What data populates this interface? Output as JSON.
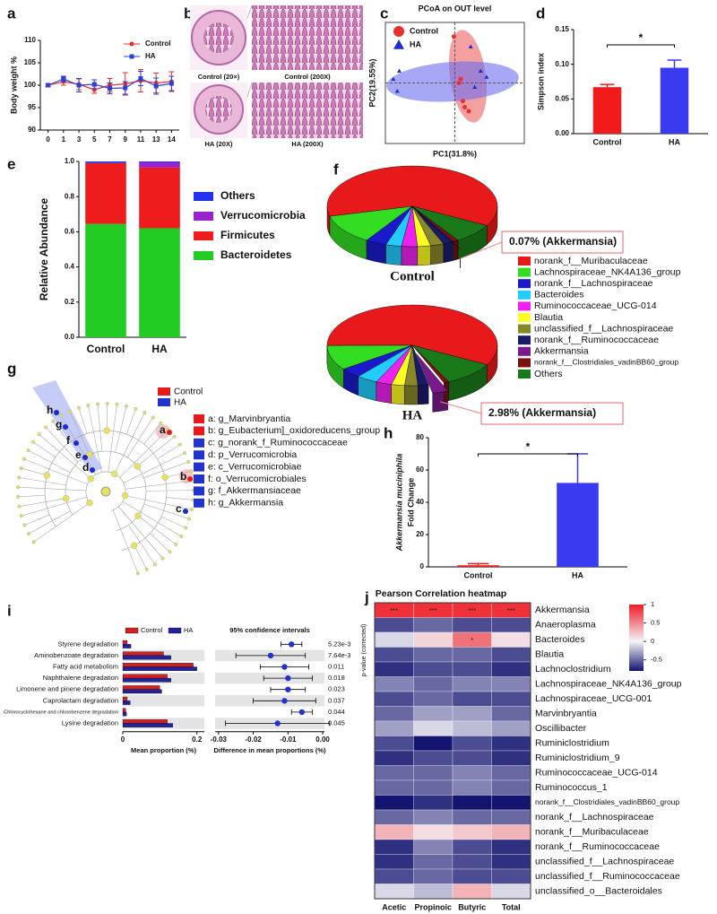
{
  "chart_data": [
    {
      "panel": "a",
      "type": "line",
      "ylabel": "Body weight %",
      "categories": [
        "0",
        "1",
        "3",
        "5",
        "7",
        "9",
        "11",
        "13",
        "14"
      ],
      "series": [
        {
          "name": "Control",
          "color": "#e8302a",
          "marker": "circle",
          "values": [
            100,
            100.8,
            100.2,
            99,
            100,
            100.3,
            101,
            100.5,
            100.8
          ],
          "errors": [
            0.3,
            0.8,
            1.2,
            0.8,
            1.5,
            2.5,
            2.5,
            2.2,
            2.2
          ]
        },
        {
          "name": "HA",
          "color": "#2f3fd6",
          "marker": "square",
          "values": [
            100,
            101.4,
            100,
            100.2,
            99.3,
            99.4,
            101.5,
            99.8,
            100.4
          ],
          "errors": [
            0.3,
            0.6,
            1.5,
            1,
            1.2,
            1.4,
            1.6,
            1.8,
            1.6
          ]
        }
      ],
      "ylim": [
        90,
        110
      ],
      "yticks": [
        90,
        95,
        100,
        105,
        110
      ],
      "legend": "upper-right"
    },
    {
      "panel": "c",
      "type": "scatter",
      "title": "PCoA on OUT level",
      "xlabel": "PC1(31.8%)",
      "ylabel": "PC2(19.55%)",
      "xlim": [
        -0.35,
        0.35
      ],
      "ylim": [
        -0.3,
        0.3
      ],
      "legend": "upper-left",
      "series": [
        {
          "name": "Control",
          "color": "#e8302a",
          "marker": "circle",
          "x": [
            -0.005,
            0.02,
            0.05,
            0.07,
            0.04,
            0.03
          ],
          "y": [
            0.23,
            0.0,
            -0.12,
            -0.14,
            -0.09,
            0.02
          ]
        },
        {
          "name": "HA",
          "color": "#1c2fc9",
          "marker": "triangle",
          "x": [
            -0.28,
            -0.31,
            0.08,
            0.13,
            0.16,
            0.1,
            -0.29
          ],
          "y": [
            0.06,
            0.02,
            0.18,
            0.06,
            0.03,
            -0.02,
            -0.04
          ]
        }
      ]
    },
    {
      "panel": "d",
      "type": "bar",
      "ylabel": "Simpson index",
      "categories": [
        "Control",
        "HA"
      ],
      "values": [
        0.067,
        0.095
      ],
      "errors": [
        0.004,
        0.011
      ],
      "colors": [
        "#f21b1b",
        "#3a3af0"
      ],
      "ylim": [
        0,
        0.15
      ],
      "yticks": [
        {
          "value": 0,
          "label": "0.00"
        },
        0.05,
        {
          "value": 0.1,
          "label": "0.10"
        },
        0.15
      ],
      "annotation": "*"
    },
    {
      "panel": "e",
      "type": "stacked_bar",
      "ylabel": "Relative Abundance",
      "categories": [
        "Control",
        "HA"
      ],
      "series": [
        {
          "name": "Bacteroidetes",
          "color": "#22cc22",
          "values": [
            0.645,
            0.62
          ]
        },
        {
          "name": "Firmicutes",
          "color": "#ee1c1c",
          "values": [
            0.345,
            0.345
          ]
        },
        {
          "name": "Verrucomicrobia",
          "color": "#9922cc",
          "values": [
            0.001,
            0.03
          ]
        },
        {
          "name": "Others",
          "color": "#2233ee",
          "values": [
            0.009,
            0.005
          ]
        }
      ],
      "ylim": [
        0,
        1
      ],
      "yticks": [
        {
          "value": 0,
          "label": "0.0"
        },
        0.2,
        0.4,
        0.6,
        0.8,
        {
          "value": 1,
          "label": "1.0"
        }
      ]
    },
    {
      "panel": "f",
      "type": "pie",
      "explode": "Akkermansia",
      "categories": [
        "norank_f__Muribaculaceae",
        "Lachnospiraceae_NK4A136_group",
        "norank_f__Lachnospiraceae",
        "Bacteroides",
        "Ruminococcaceae_UCG-014",
        "Blautia",
        "unclassified_f__Lachnospiraceae",
        "norank_f__Ruminococcaceae",
        "Akkermansia",
        "norank_f__Clostridiales_vadinBB60_group",
        "Others"
      ],
      "colors": [
        "#e8191b",
        "#33dd22",
        "#1a1acc",
        "#22ccff",
        "#ee22ee",
        "#ffff22",
        "#88882a",
        "#1a1a6a",
        "#7a1a8a",
        "#7a1010",
        "#1a7a1a"
      ],
      "pies": [
        {
          "title": "Control",
          "annotation": "0.07% (Akkermansia)",
          "values": [
            62,
            12,
            4,
            3,
            3,
            2.5,
            2.5,
            2,
            0.07,
            1,
            8
          ]
        },
        {
          "title": "HA",
          "annotation": "2.98% (Akkermansia)",
          "values": [
            58,
            10,
            4,
            4,
            3,
            2.5,
            2.5,
            2,
            2.98,
            1,
            10
          ]
        }
      ]
    },
    {
      "panel": "h",
      "type": "bar",
      "ylabel": [
        "Akkermansia muciniphila",
        "Fold Change"
      ],
      "categories": [
        "Control",
        "HA"
      ],
      "values": [
        1,
        52
      ],
      "errors": [
        1,
        18
      ],
      "colors": [
        "#f21b1b",
        "#3a3af0"
      ],
      "ylim": [
        0,
        80
      ],
      "yticks": [
        0,
        20,
        40,
        60,
        80
      ],
      "annotation": "*"
    },
    {
      "panel": "i",
      "type": "paired_hbar",
      "xlabel": "Mean proportion  (%)",
      "categories": [
        "Styrene degradation",
        "Aminobenzoate degradation",
        "Fatty acid metabolism",
        "Naphthalene degradation",
        "Limonene and pinene degradation",
        "Caprolactam degradation",
        "Chlorocyclohexane and chlorobenzene degradation",
        "Lysine degradation"
      ],
      "series": [
        {
          "name": "Control",
          "color": "#cc2222",
          "values": [
            0.012,
            0.11,
            0.19,
            0.12,
            0.1,
            0.012,
            0.008,
            0.12
          ]
        },
        {
          "name": "HA",
          "color": "#222299",
          "values": [
            0.022,
            0.13,
            0.2,
            0.13,
            0.105,
            0.02,
            0.01,
            0.135
          ]
        }
      ],
      "xlim": [
        0,
        0.22
      ],
      "xticks": [
        0,
        0.2
      ],
      "ci": {
        "title": "95% confidence intervals",
        "xlabel": "Difference in mean proportions (%)",
        "color": "#2233cc",
        "values": [
          -0.009,
          -0.015,
          -0.011,
          -0.01,
          -0.01,
          -0.011,
          -0.006,
          -0.013
        ],
        "errors": [
          0.003,
          0.01,
          0.007,
          0.007,
          0.005,
          0.009,
          0.003,
          0.015
        ],
        "xlim": [
          -0.031,
          0.0005
        ],
        "xticks": [
          -0.03,
          -0.02,
          -0.01,
          {
            "value": 0,
            "label": "0.00"
          }
        ]
      },
      "p_values": [
        {
          "value": 0.00523,
          "label": "5.23e-3"
        },
        {
          "value": 0.00764,
          "label": "7.64e-3"
        },
        0.011,
        0.018,
        0.023,
        0.037,
        0.044,
        0.045
      ]
    },
    {
      "panel": "j",
      "type": "heatmap",
      "title": "Pearson Correlation heatmap",
      "ylabel": "p-value (corrected)",
      "columns": [
        "Acetic",
        "Propinoic",
        "Butyric",
        "Total"
      ],
      "rows": [
        "Akkermansia",
        "Anaeroplasma",
        "Bacteroides",
        "Blautia",
        "Lachnoclostridium",
        "Lachnospiraceae_NK4A136_group",
        "Lachnospiraceae_UCG-001",
        "Marvinbryantia",
        "Oscillibacter",
        "Ruminiclostridium",
        "Ruminiclostridium_9",
        "Ruminococcaceae_UCG-014",
        "Ruminococcus_1",
        "norank_f__Clostridiales_vadinBB60_group",
        "norank_f__Lachnospiraceae",
        "norank_f__Muribaculaceae",
        "norank_f__Ruminococcaceae",
        "unclassified_f__Lachnospiraceae",
        "unclassified_f__Ruminococcaceae",
        "unclassified_o__Bacteroidales"
      ],
      "values": [
        [
          0.9,
          0.9,
          0.9,
          0.9
        ],
        [
          -0.6,
          -0.5,
          -0.6,
          -0.6
        ],
        [
          -0.1,
          0.15,
          0.6,
          0.1
        ],
        [
          -0.6,
          -0.5,
          -0.5,
          -0.6
        ],
        [
          -0.7,
          -0.6,
          -0.6,
          -0.7
        ],
        [
          -0.4,
          -0.5,
          -0.4,
          -0.4
        ],
        [
          -0.6,
          -0.5,
          -0.6,
          -0.6
        ],
        [
          -0.5,
          -0.3,
          -0.3,
          -0.5
        ],
        [
          -0.3,
          -0.1,
          -0.2,
          -0.3
        ],
        [
          -0.6,
          -0.8,
          -0.6,
          -0.7
        ],
        [
          -0.7,
          -0.6,
          -0.6,
          -0.7
        ],
        [
          -0.5,
          -0.5,
          -0.4,
          -0.5
        ],
        [
          -0.5,
          -0.5,
          -0.4,
          -0.5
        ],
        [
          -0.8,
          -0.7,
          -0.8,
          -0.8
        ],
        [
          -0.5,
          -0.4,
          -0.5,
          -0.5
        ],
        [
          0.3,
          0.1,
          0.2,
          0.3
        ],
        [
          -0.7,
          -0.4,
          -0.6,
          -0.7
        ],
        [
          -0.7,
          -0.5,
          -0.6,
          -0.7
        ],
        [
          -0.6,
          -0.5,
          -0.6,
          -0.6
        ],
        [
          -0.1,
          -0.2,
          0.3,
          -0.1
        ]
      ],
      "stars": [
        [
          "***",
          "***",
          "***",
          "***"
        ],
        [
          null,
          null,
          null,
          null
        ],
        [
          null,
          null,
          "*",
          null
        ],
        [
          null,
          null,
          null,
          null
        ],
        [
          null,
          null,
          null,
          null
        ],
        [
          null,
          null,
          null,
          null
        ],
        [
          null,
          null,
          null,
          null
        ],
        [
          null,
          null,
          null,
          null
        ],
        [
          null,
          null,
          null,
          null
        ],
        [
          null,
          null,
          null,
          null
        ],
        [
          null,
          null,
          null,
          null
        ],
        [
          null,
          null,
          null,
          null
        ],
        [
          null,
          null,
          null,
          null
        ],
        [
          null,
          null,
          null,
          null
        ],
        [
          null,
          null,
          null,
          null
        ],
        [
          null,
          null,
          null,
          null
        ],
        [
          null,
          null,
          null,
          null
        ],
        [
          null,
          null,
          null,
          null
        ],
        [
          null,
          null,
          null,
          null
        ],
        [
          null,
          null,
          null,
          null
        ]
      ],
      "colormap": [
        "#141470",
        "#f4f4f8",
        "#ee1c25"
      ],
      "clim": [
        -0.8,
        1
      ],
      "cticks": [
        1,
        0.5,
        0,
        -0.5
      ]
    }
  ],
  "histology": {
    "panel": "b",
    "labels": [
      "Control (20×)",
      "Control (200X)",
      "HA (20X)",
      "HA (200X)"
    ]
  },
  "cladogram": {
    "panel": "g",
    "legend": [
      "Control",
      "HA"
    ],
    "legend_colors": [
      "#e8191b",
      "#2233cc"
    ],
    "node_labels": [
      "h",
      "g",
      "f",
      "e",
      "d",
      "c",
      "b",
      "a"
    ],
    "taxa": [
      "a: g_Marvinbryantia",
      "b: g_Eubacterium]_oxidoreducens_group",
      "c: g_norank_f_Ruminococcaceae",
      "d: p_Verrucomicrobia",
      "e: c_Verrucomicrobiae",
      "f: o_Verrucomicrobiales",
      "g: f_Akkermansiaceae",
      "h: g_Akkermansia"
    ],
    "taxa_groups": [
      "Control",
      "Control",
      "HA",
      "HA",
      "HA",
      "HA",
      "HA",
      "HA"
    ]
  }
}
